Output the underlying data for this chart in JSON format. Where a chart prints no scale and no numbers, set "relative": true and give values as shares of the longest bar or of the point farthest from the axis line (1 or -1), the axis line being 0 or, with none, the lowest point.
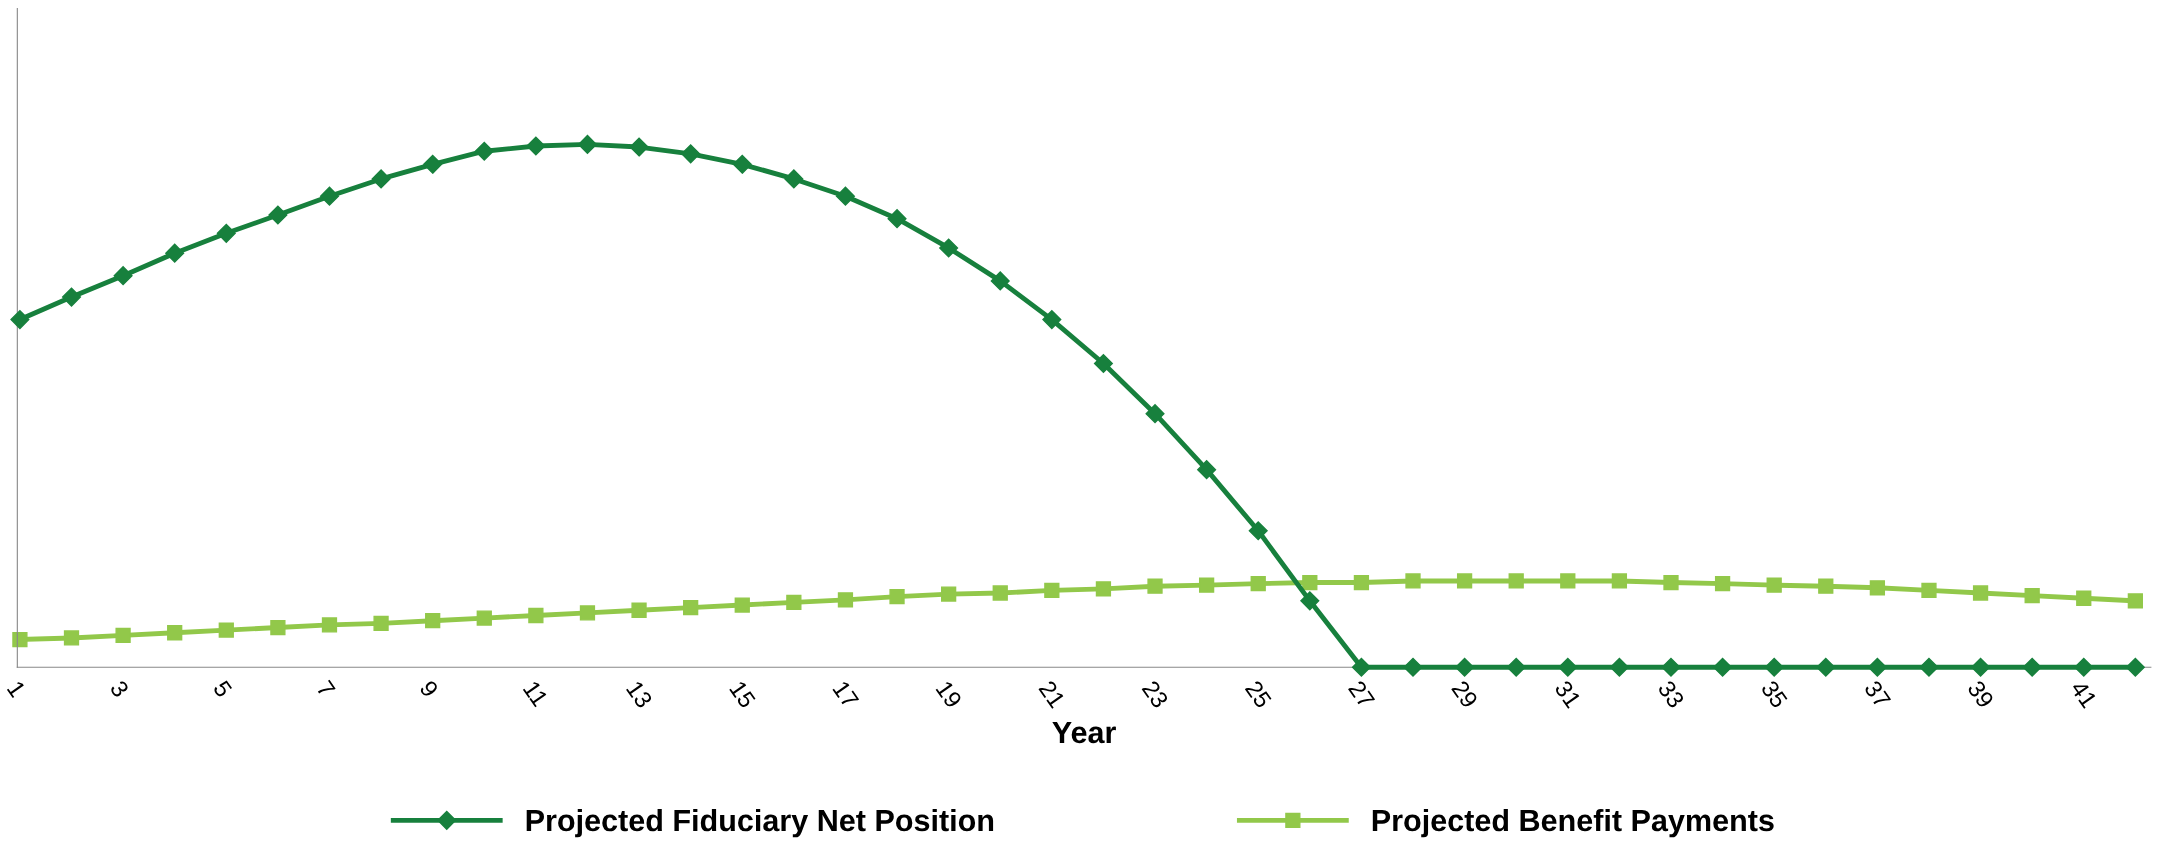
{
  "chart_data": {
    "type": "line",
    "relative": true,
    "xlabel": "Year",
    "categories": [
      "1",
      null,
      "3",
      null,
      "5",
      null,
      "7",
      null,
      "9",
      null,
      "11",
      null,
      "13",
      null,
      "15",
      null,
      "17",
      null,
      "19",
      null,
      "21",
      null,
      "23",
      null,
      "25",
      null,
      "27",
      null,
      "29",
      null,
      "31",
      null,
      "33",
      null,
      "35",
      null,
      "37",
      null,
      "39",
      null,
      "41",
      null
    ],
    "series": [
      {
        "name": "Projected Fiduciary Net Position",
        "color": "#17803d",
        "marker": "diamond",
        "values": [
          0.665,
          0.708,
          0.749,
          0.792,
          0.83,
          0.865,
          0.901,
          0.934,
          0.962,
          0.987,
          0.997,
          1,
          0.995,
          0.982,
          0.962,
          0.934,
          0.901,
          0.858,
          0.802,
          0.739,
          0.665,
          0.581,
          0.485,
          0.378,
          0.261,
          0.127,
          0,
          0,
          0,
          0,
          0,
          0,
          0,
          0,
          0,
          0,
          0,
          0,
          0,
          0,
          0,
          0
        ]
      },
      {
        "name": "Projected Benefit Payments",
        "color": "#92c84a",
        "marker": "square",
        "values": [
          0.053,
          0.056,
          0.061,
          0.066,
          0.071,
          0.076,
          0.081,
          0.084,
          0.089,
          0.094,
          0.099,
          0.104,
          0.109,
          0.114,
          0.119,
          0.124,
          0.129,
          0.135,
          0.14,
          0.142,
          0.147,
          0.15,
          0.155,
          0.157,
          0.16,
          0.162,
          0.162,
          0.165,
          0.165,
          0.165,
          0.165,
          0.165,
          0.162,
          0.16,
          0.157,
          0.155,
          0.152,
          0.147,
          0.142,
          0.137,
          0.132,
          0.127
        ]
      }
    ],
    "legend": "bottom",
    "line_style": "solid"
  }
}
